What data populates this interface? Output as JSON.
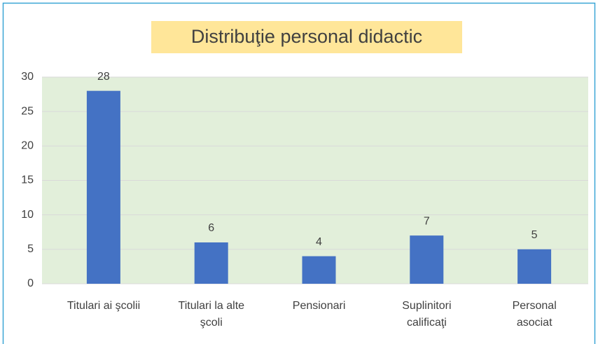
{
  "chart_data": {
    "type": "bar",
    "title": "Distribuţie personal didactic",
    "categories": [
      "Titulari ai şcolii",
      "Titulari la alte\nşcoli",
      "Pensionari",
      "Suplinitori\ncalificaţi",
      "Personal\nasociat"
    ],
    "values": [
      28,
      6,
      4,
      7,
      5
    ],
    "color": "#4472c4",
    "ylim": [
      0,
      30
    ],
    "yticks": [
      0,
      5,
      10,
      15,
      20,
      25,
      30
    ],
    "grid": true
  }
}
